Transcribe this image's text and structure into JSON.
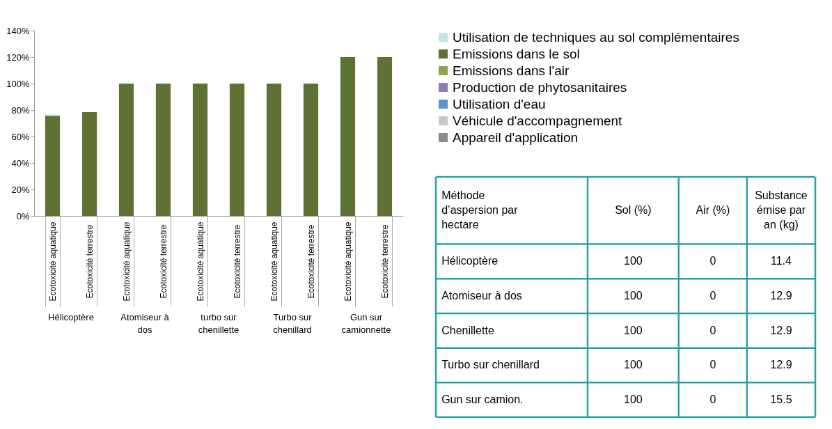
{
  "chart_data": [
    {
      "type": "bar",
      "stacked": true,
      "legend": "top right",
      "grid": false,
      "categories": [
        "Ecotoxicité aquatique",
        "Ecotoxicité terrestre",
        "Ecotoxicité aquatique",
        "Ecotoxicité terrestre",
        "Ecotoxicité aquatique",
        "Ecotoxicité terrestre",
        "Ecotoxicité aquatique",
        "Ecotoxicité terrestre",
        "Ecotoxicité aquatique",
        "Ecotoxicité terrestre"
      ],
      "ylim": [
        0,
        140
      ],
      "yticks": [
        {
          "value": 0,
          "label": "0%"
        },
        {
          "value": 20,
          "label": "20%"
        },
        {
          "value": 40,
          "label": "40%"
        },
        {
          "value": 60,
          "label": "60%"
        },
        {
          "value": 80,
          "label": "80%"
        },
        {
          "value": 100,
          "label": "100%"
        },
        {
          "value": 120,
          "label": "120%"
        },
        {
          "value": 140,
          "label": "140%"
        }
      ],
      "annotations": [
        "Hélicoptère",
        "Atomiseur à dos",
        "turbo sur chenillette",
        "Turbo sur chenillard",
        "Gun sur camionnette"
      ],
      "series": [
        {
          "name": "Appareil d'application",
          "color": "#8c8c8c",
          "values": [
            null,
            null,
            null,
            null,
            null,
            null,
            null,
            null,
            null,
            null
          ]
        },
        {
          "name": "Véhicule d'accompagnement",
          "color": "#c8c8c8",
          "values": [
            null,
            null,
            null,
            null,
            null,
            null,
            null,
            null,
            null,
            null
          ]
        },
        {
          "name": "Utilisation d'eau",
          "color": "#5b93cb",
          "values": [
            null,
            null,
            null,
            null,
            null,
            null,
            null,
            null,
            null,
            null
          ]
        },
        {
          "name": "Production de phytosanitaires",
          "color": "#8e7cb5",
          "values": [
            null,
            null,
            null,
            null,
            null,
            null,
            null,
            null,
            null,
            null
          ]
        },
        {
          "name": "Emissions dans l'air",
          "color": "#8ba34b",
          "values": [
            null,
            null,
            null,
            null,
            null,
            null,
            null,
            null,
            null,
            null
          ]
        },
        {
          "name": "Emissions dans le sol",
          "color": "#5f7235",
          "values": [
            75.6,
            78.4,
            100,
            100,
            100,
            100,
            100,
            100,
            120,
            120
          ]
        },
        {
          "name": "Utilisation de techniques au sol complémentaires",
          "color": "#c5e3ea",
          "values": [
            1,
            null,
            null,
            null,
            null,
            null,
            null,
            null,
            null,
            null
          ]
        }
      ]
    },
    {
      "type": "other",
      "data_labels": true,
      "ylabel": "Méthode d’aspersion par hectare",
      "categories": [
        "Hélicoptère",
        "Atomiseur à dos",
        "Chenillette",
        "Turbo sur chenillard",
        "Gun sur camion."
      ],
      "series": [
        {
          "name": "Sol (%)",
          "values": [
            100,
            100,
            100,
            100,
            100
          ]
        },
        {
          "name": "Air (%)",
          "values": [
            0,
            0,
            0,
            0,
            0
          ]
        },
        {
          "name": "Substance émise par an (kg)",
          "values": [
            11.4,
            12.9,
            12.9,
            12.9,
            15.5
          ]
        }
      ]
    }
  ]
}
